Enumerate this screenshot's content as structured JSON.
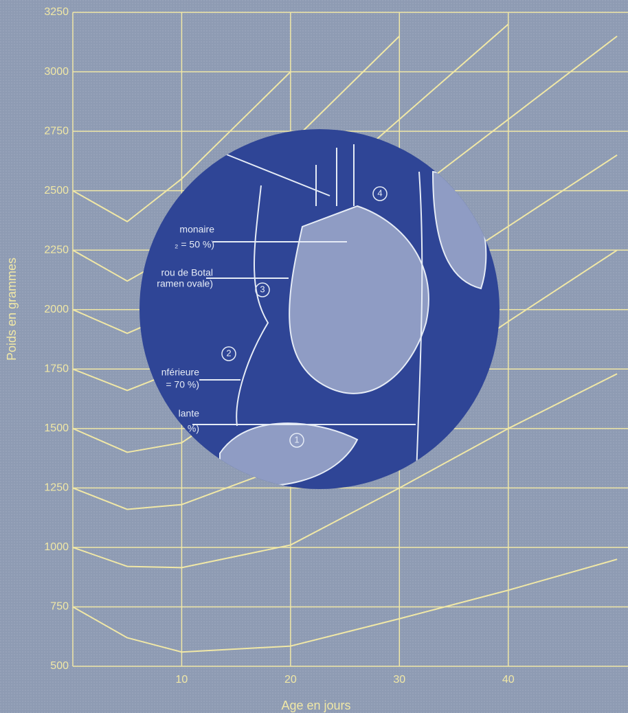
{
  "chart_data": {
    "type": "line",
    "x_label": "Age en jours",
    "y_label": "Poids en grammes",
    "x": [
      0,
      5,
      10,
      20,
      30,
      40,
      50
    ],
    "xlim": [
      0,
      51
    ],
    "ylim": [
      500,
      3250
    ],
    "xticks": [
      10,
      20,
      30,
      40
    ],
    "yticks": [
      500,
      750,
      1000,
      1250,
      1500,
      1750,
      2000,
      2250,
      2500,
      2750,
      3000,
      3250
    ],
    "grid": true,
    "color": "#f1e8a6",
    "series": [
      {
        "values": [
          750,
          620,
          560,
          585,
          700,
          820,
          950
        ]
      },
      {
        "values": [
          1000,
          920,
          915,
          1010,
          1250,
          1500,
          1730
        ]
      },
      {
        "values": [
          1250,
          1160,
          1180,
          1350,
          1640,
          1950,
          2250
        ]
      },
      {
        "values": [
          1500,
          1400,
          1440,
          1750,
          2050,
          2350,
          2650
        ]
      },
      {
        "values": [
          1750,
          1660,
          1750,
          2100,
          2450,
          2800,
          3150
        ]
      },
      {
        "values": [
          2000,
          1900,
          2000,
          2400,
          2800,
          3200,
          null
        ]
      },
      {
        "values": [
          2250,
          2120,
          2250,
          2700,
          3150,
          null,
          null
        ]
      },
      {
        "values": [
          2500,
          2370,
          2550,
          3000,
          null,
          null,
          null
        ]
      }
    ],
    "annotations": [
      "monaire",
      "₂ = 50 %)",
      "rou de Botal",
      "ramen ovale)",
      "nférieure",
      "= 70 %)",
      "lante",
      "%)",
      "1",
      "2",
      "3",
      "4"
    ]
  }
}
